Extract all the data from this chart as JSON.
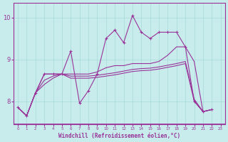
{
  "bg_color": "#c8ecec",
  "line_color": "#993399",
  "xlabel": "Windchill (Refroidissement éolien,°C)",
  "xlim": [
    -0.5,
    23.5
  ],
  "ylim": [
    7.45,
    10.35
  ],
  "yticks": [
    8,
    9,
    10
  ],
  "xticks": [
    0,
    1,
    2,
    3,
    4,
    5,
    6,
    7,
    8,
    9,
    10,
    11,
    12,
    13,
    14,
    15,
    16,
    17,
    18,
    19,
    20,
    21,
    22,
    23
  ],
  "hours": [
    0,
    1,
    2,
    3,
    4,
    5,
    6,
    7,
    8,
    9,
    10,
    11,
    12,
    13,
    14,
    15,
    16,
    17,
    18,
    19,
    20,
    21,
    22
  ],
  "main_line": [
    7.85,
    7.65,
    8.2,
    8.65,
    8.65,
    8.65,
    9.2,
    7.95,
    8.25,
    8.65,
    9.5,
    9.7,
    9.4,
    10.05,
    9.65,
    9.5,
    9.65,
    9.65,
    9.65,
    9.3,
    8.0,
    7.75,
    7.8
  ],
  "line2": [
    7.85,
    7.65,
    8.2,
    8.65,
    8.65,
    8.65,
    8.65,
    8.65,
    8.65,
    8.7,
    8.8,
    8.85,
    8.85,
    8.9,
    8.9,
    8.9,
    8.95,
    9.1,
    9.3,
    9.3,
    8.95,
    7.75,
    7.8
  ],
  "line3": [
    7.85,
    7.65,
    8.2,
    8.5,
    8.6,
    8.65,
    8.6,
    8.6,
    8.6,
    8.62,
    8.65,
    8.68,
    8.72,
    8.76,
    8.78,
    8.79,
    8.82,
    8.86,
    8.9,
    8.95,
    8.05,
    7.75,
    7.8
  ],
  "line4": [
    7.85,
    7.65,
    8.2,
    8.4,
    8.55,
    8.65,
    8.55,
    8.55,
    8.55,
    8.57,
    8.6,
    8.63,
    8.67,
    8.71,
    8.73,
    8.74,
    8.77,
    8.81,
    8.85,
    8.9,
    8.0,
    7.75,
    7.8
  ]
}
